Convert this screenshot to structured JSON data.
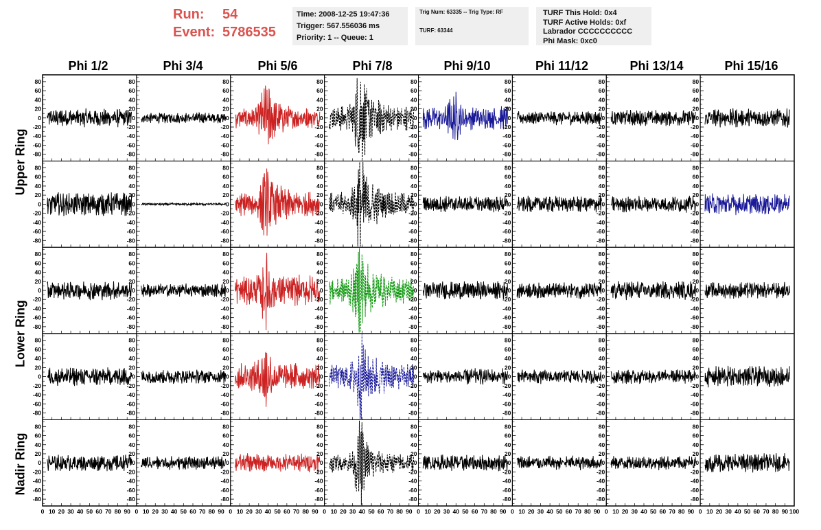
{
  "header": {
    "run_label": "Run:",
    "run_value": "54",
    "event_label": "Event:",
    "event_value": "5786535",
    "time": "Time: 2008-12-25 19:47:36",
    "trigger": "Trigger: 567.556036 ms",
    "priority": "Priority: 1 -- Queue: 1",
    "trig_num": "Trig Num: 63335 -- Trig Type: RF",
    "turf": "TURF: 63344",
    "turf_this_hold": "TURF This Hold: 0x4",
    "turf_active_holds": "TURF Active Holds: 0xf",
    "labrador": "Labrador CCCCCCCCCC",
    "phi_mask": "Phi Mask: 0xc0"
  },
  "columns": [
    "Phi 1/2",
    "Phi 3/4",
    "Phi 5/6",
    "Phi 7/8",
    "Phi 9/10",
    "Phi 11/12",
    "Phi 13/14",
    "Phi 15/16"
  ],
  "ring_labels": {
    "upper": "Upper Ring",
    "lower": "Lower Ring",
    "nadir": "Nadir Ring"
  },
  "colors": {
    "normal": "#000000",
    "red": "#cc2222",
    "blue": "#1a1a99",
    "green": "#119911",
    "dashed_black": "#000000"
  },
  "chart_data": {
    "type": "line",
    "y_ticks": [
      -80,
      -60,
      -40,
      -20,
      0,
      20,
      40,
      60,
      80
    ],
    "ylim": [
      -95,
      95
    ],
    "x_ticks": [
      0,
      10,
      20,
      30,
      40,
      50,
      60,
      70,
      80,
      90,
      100
    ],
    "xlim": [
      0,
      100
    ],
    "last_x_tick_label": "100",
    "panels": [
      [
        {
          "style": "normal",
          "amp": 16,
          "pulse": 0
        },
        {
          "style": "normal",
          "amp": 9,
          "pulse": 0
        },
        {
          "style": "red",
          "amp": 18,
          "pulse": 45
        },
        {
          "style": "dashed_black",
          "amp": 22,
          "pulse": 65
        },
        {
          "style": "blue",
          "amp": 20,
          "pulse": 30
        },
        {
          "style": "normal",
          "amp": 12,
          "pulse": 0
        },
        {
          "style": "normal",
          "amp": 14,
          "pulse": 0
        },
        {
          "style": "normal",
          "amp": 16,
          "pulse": 0
        }
      ],
      [
        {
          "style": "normal",
          "amp": 20,
          "pulse": 0
        },
        {
          "style": "normal",
          "amp": 2,
          "pulse": 0
        },
        {
          "style": "red",
          "amp": 22,
          "pulse": 45
        },
        {
          "style": "dashed_black",
          "amp": 20,
          "pulse": 70
        },
        {
          "style": "normal",
          "amp": 14,
          "pulse": 0
        },
        {
          "style": "normal",
          "amp": 14,
          "pulse": 0
        },
        {
          "style": "normal",
          "amp": 14,
          "pulse": 0
        },
        {
          "style": "blue",
          "amp": 18,
          "pulse": 0
        }
      ],
      [
        {
          "style": "normal",
          "amp": 16,
          "pulse": 0
        },
        {
          "style": "normal",
          "amp": 12,
          "pulse": 0
        },
        {
          "style": "red",
          "amp": 26,
          "pulse": 40
        },
        {
          "style": "green",
          "amp": 24,
          "pulse": 65
        },
        {
          "style": "normal",
          "amp": 16,
          "pulse": 0
        },
        {
          "style": "normal",
          "amp": 14,
          "pulse": 0
        },
        {
          "style": "normal",
          "amp": 16,
          "pulse": 0
        },
        {
          "style": "normal",
          "amp": 14,
          "pulse": 0
        }
      ],
      [
        {
          "style": "normal",
          "amp": 16,
          "pulse": 0
        },
        {
          "style": "normal",
          "amp": 12,
          "pulse": 0
        },
        {
          "style": "red",
          "amp": 24,
          "pulse": 40
        },
        {
          "style": "blue",
          "amp": 24,
          "pulse": 55
        },
        {
          "style": "normal",
          "amp": 14,
          "pulse": 0
        },
        {
          "style": "normal",
          "amp": 12,
          "pulse": 0
        },
        {
          "style": "normal",
          "amp": 12,
          "pulse": 0
        },
        {
          "style": "normal",
          "amp": 18,
          "pulse": 0
        }
      ],
      [
        {
          "style": "normal",
          "amp": 14,
          "pulse": 0
        },
        {
          "style": "normal",
          "amp": 12,
          "pulse": 0
        },
        {
          "style": "red",
          "amp": 16,
          "pulse": 0
        },
        {
          "style": "dashed_black",
          "amp": 16,
          "pulse": 55
        },
        {
          "style": "normal",
          "amp": 14,
          "pulse": 0
        },
        {
          "style": "normal",
          "amp": 12,
          "pulse": 0
        },
        {
          "style": "normal",
          "amp": 12,
          "pulse": 0
        },
        {
          "style": "normal",
          "amp": 16,
          "pulse": 0
        }
      ]
    ]
  }
}
